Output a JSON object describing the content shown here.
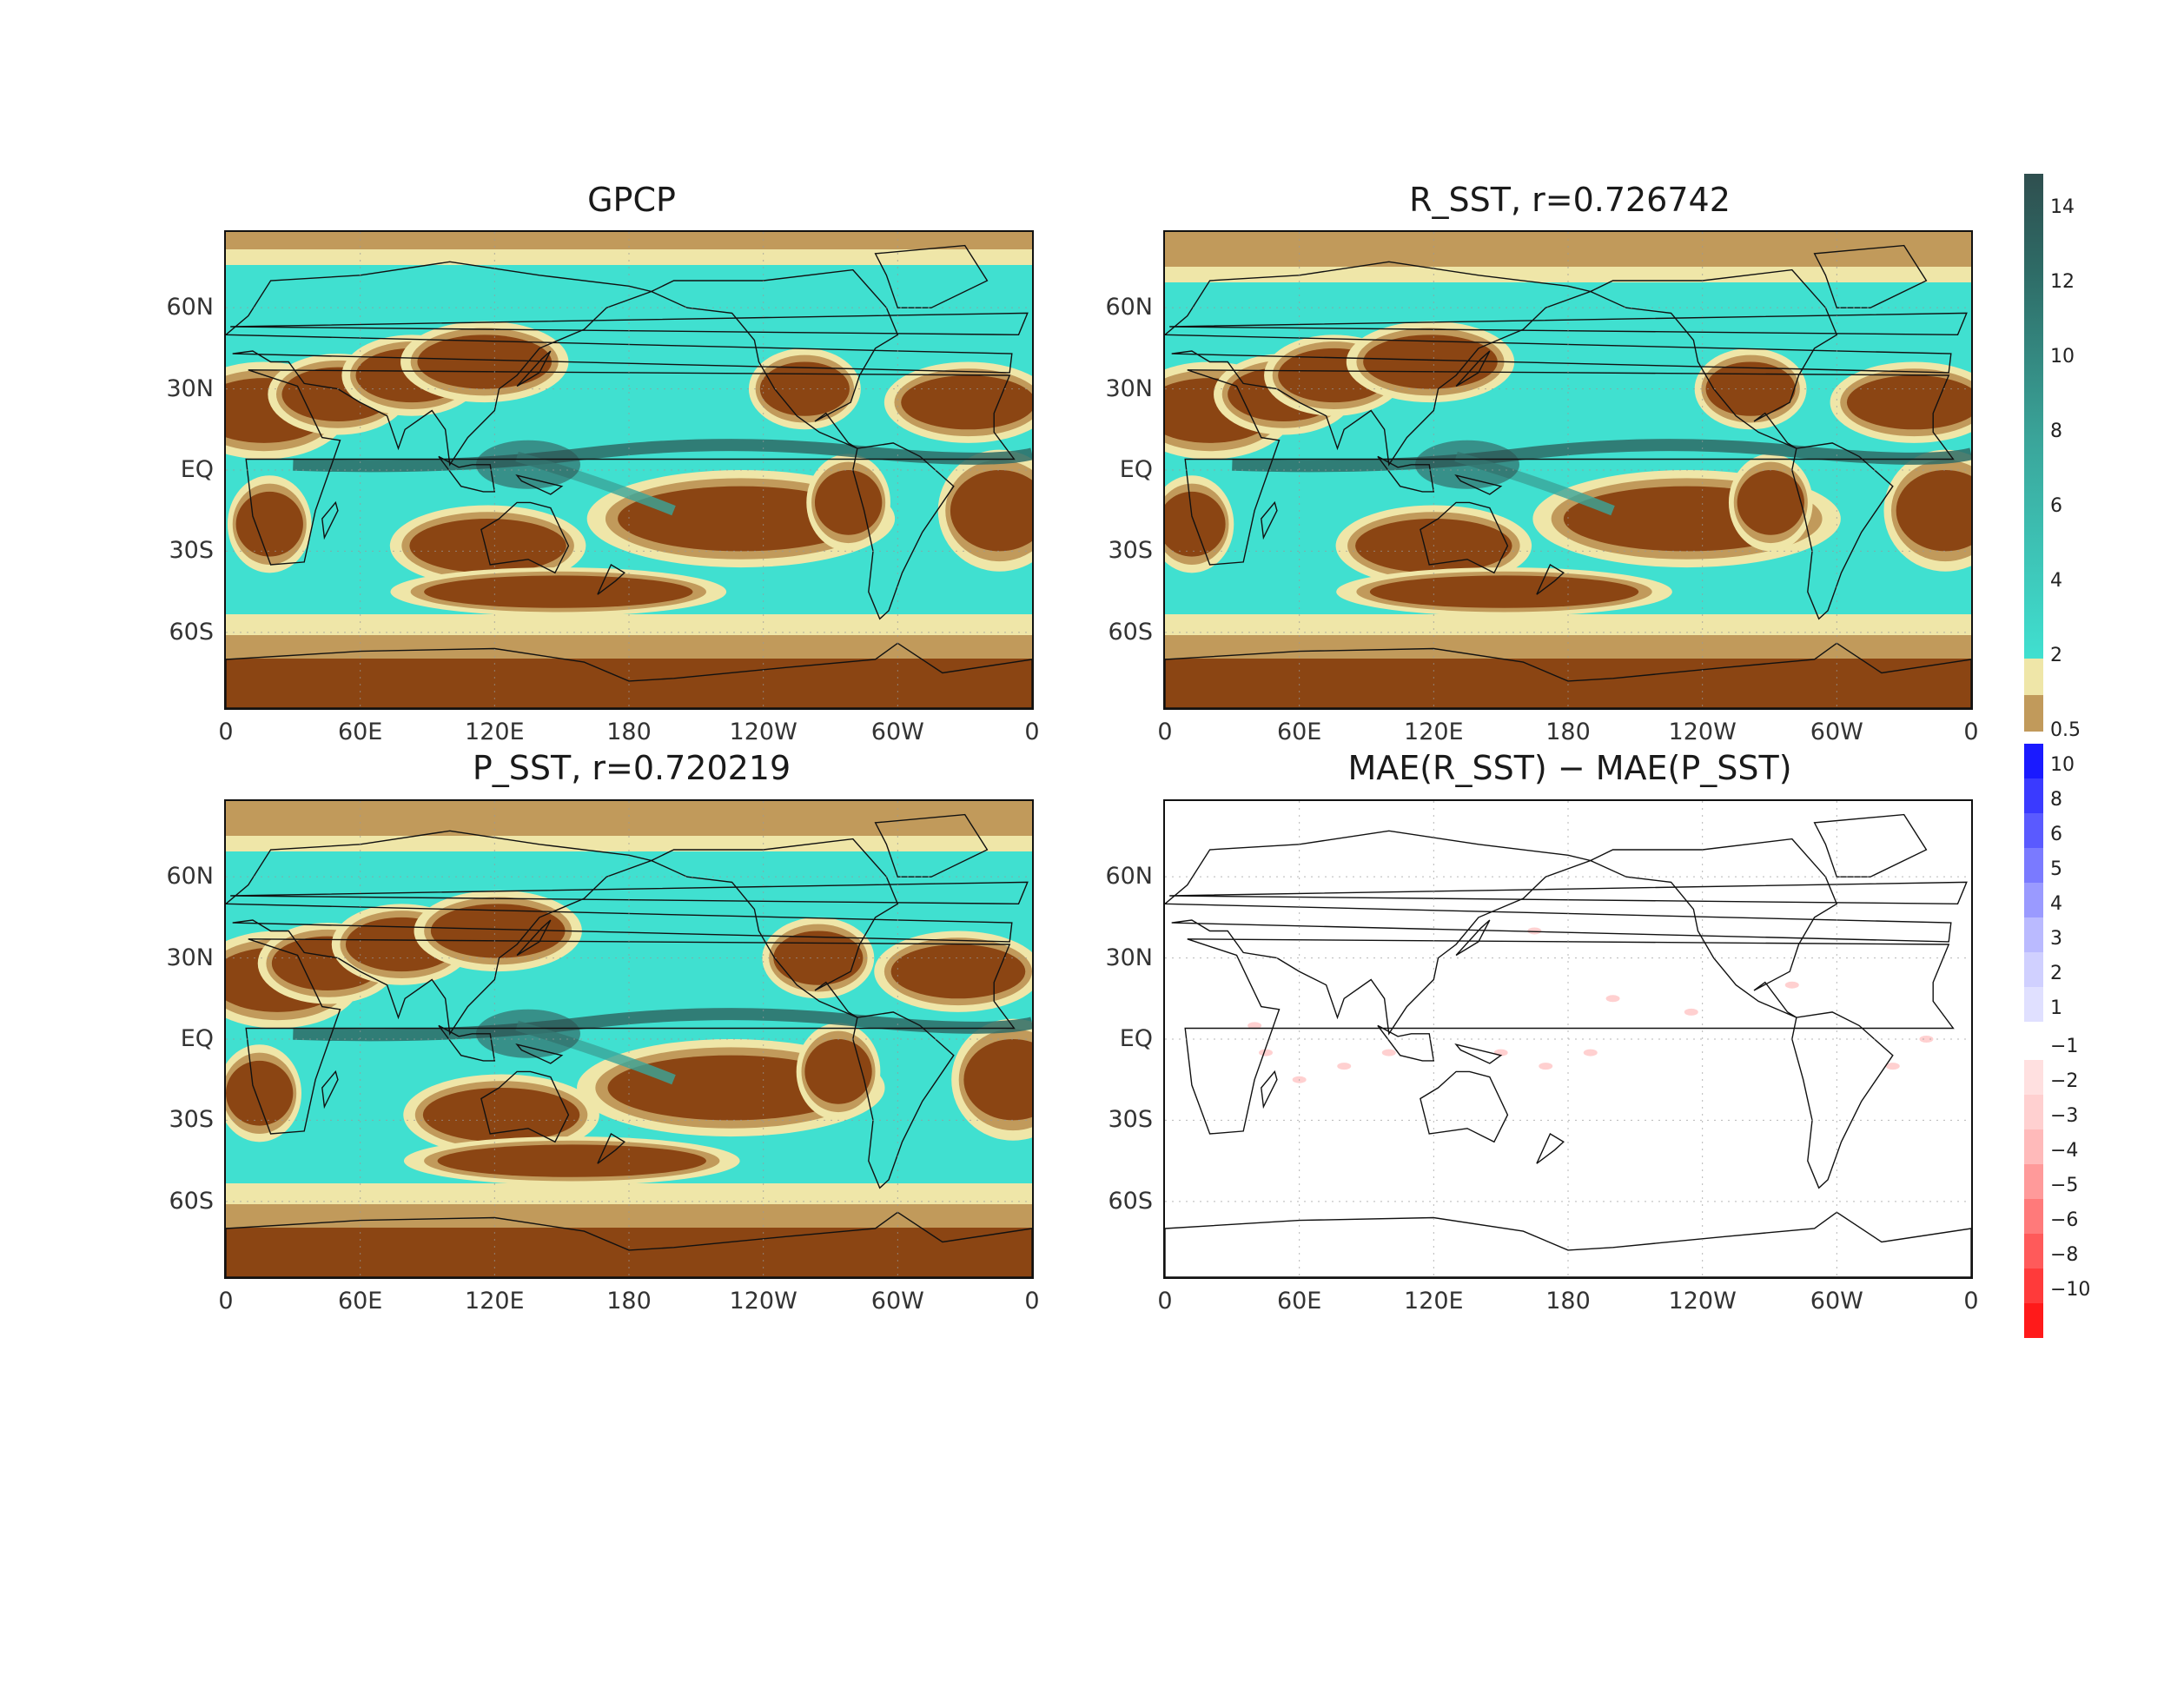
{
  "panels": [
    {
      "id": "gpcp",
      "title": "GPCP"
    },
    {
      "id": "r_sst",
      "title": "R_SST, r=0.726742"
    },
    {
      "id": "p_sst",
      "title": "P_SST, r=0.720219"
    },
    {
      "id": "mae_diff",
      "title": "MAE(R_SST) − MAE(P_SST)"
    }
  ],
  "axes": {
    "y_ticks": [
      "60N",
      "30N",
      "EQ",
      "30S",
      "60S"
    ],
    "x_ticks": [
      "0",
      "60E",
      "120E",
      "180",
      "120W",
      "60W",
      "0"
    ]
  },
  "colorbar_precip": {
    "labels": [
      "14",
      "12",
      "10",
      "8",
      "6",
      "4",
      "2",
      "0.5"
    ],
    "colors": {
      "brown": "#8b4513",
      "tan": "#c19a5b",
      "beige": "#efe6a8",
      "turquoise": "#40e0d0",
      "teal_mid": "#3aa59a",
      "teal_dark": "#2e6b66",
      "slate": "#2f4f4f"
    }
  },
  "colorbar_diff": {
    "labels": [
      "10",
      "8",
      "6",
      "5",
      "4",
      "3",
      "2",
      "1",
      "−1",
      "−2",
      "−3",
      "−4",
      "−5",
      "−6",
      "−8",
      "−10"
    ],
    "colors": {
      "blue_strong": "#1a1aff",
      "blue_light": "#e0e0ff",
      "red_light": "#ffe0e0",
      "red_strong": "#ff1a1a"
    }
  }
}
